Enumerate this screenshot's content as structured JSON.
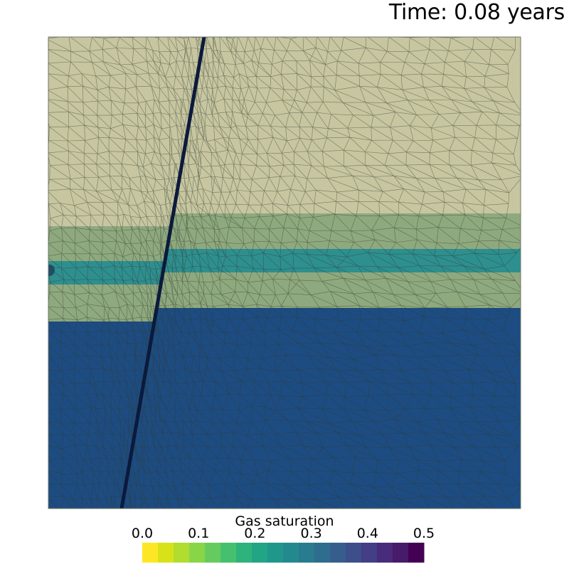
{
  "title": "Time: 0.08 years",
  "colorbar": {
    "title": "Gas saturation",
    "ticks": [
      "0.0",
      "0.1",
      "0.2",
      "0.3",
      "0.4",
      "0.5"
    ],
    "range": [
      0.0,
      0.5
    ],
    "colors": [
      "#fde725",
      "#d8e219",
      "#b0dd2f",
      "#89d548",
      "#65cb5e",
      "#46c06f",
      "#2eb37c",
      "#21a585",
      "#1f978b",
      "#23898e",
      "#297b8e",
      "#2e6d8e",
      "#355e8d",
      "#3d4e8a",
      "#433e85",
      "#482c7b",
      "#471a6a",
      "#440154"
    ]
  },
  "colors": {
    "caprock": "#c7c6a0",
    "aquifer": "#8fa97e",
    "gas_layer": "#2e8f8f",
    "basement": "#1d4c82",
    "fault": "#0b1a3c",
    "mesh_line": "#2f3a30"
  }
}
